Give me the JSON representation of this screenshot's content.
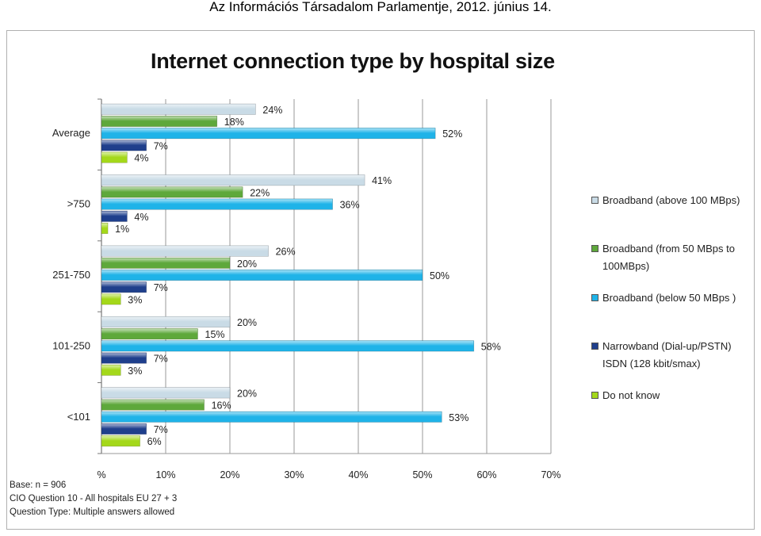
{
  "page": {
    "header": "Az Információs Társadalom Parlamentje, 2012. június 14."
  },
  "notes": [
    "Base: n = 906",
    "CIO Question 10 - All hospitals EU 27 + 3",
    "Question Type: Multiple answers allowed"
  ],
  "colors": {
    "above100": "#c9dbe6",
    "from50to100": "#5ea83b",
    "below50": "#1fb3e8",
    "narrowband": "#1f3f8c",
    "donotknow": "#a4d81a"
  },
  "chart_data": {
    "type": "bar",
    "orientation": "horizontal",
    "title": "Internet connection type by hospital size",
    "categories": [
      "Average",
      ">750",
      "251-750",
      "101-250",
      "<101"
    ],
    "series": [
      {
        "name": "Broadband (above 100 MBps)",
        "color": "#c9dbe6",
        "values": [
          24,
          41,
          26,
          20,
          20
        ],
        "labels": [
          "24%",
          "41%",
          "26%",
          "20%",
          "20%"
        ]
      },
      {
        "name": "Broadband (from 50 MBps to 100MBps)",
        "color": "#5ea83b",
        "values": [
          18,
          22,
          20,
          15,
          16
        ],
        "labels": [
          "18%",
          "22%",
          "20%",
          "15%",
          "16%"
        ]
      },
      {
        "name": "Broadband (below 50 MBps )",
        "color": "#1fb3e8",
        "values": [
          52,
          36,
          50,
          58,
          53
        ],
        "labels": [
          "52%",
          "36%",
          "50%",
          "58%",
          "53%"
        ]
      },
      {
        "name": "Narrowband (Dial-up/PSTN) ISDN (128 kbit/smax)",
        "color": "#1f3f8c",
        "values": [
          7,
          4,
          7,
          7,
          7
        ],
        "labels": [
          "7%",
          "4%",
          "7%",
          "7%",
          "7%"
        ]
      },
      {
        "name": "Do not know",
        "color": "#a4d81a",
        "values": [
          4,
          1,
          3,
          3,
          6
        ],
        "labels": [
          "4%",
          "1%",
          "3%",
          "3%",
          "6%"
        ]
      }
    ],
    "xlim": [
      0,
      70
    ],
    "x_ticks": [
      "%",
      "10%",
      "20%",
      "30%",
      "40%",
      "50%",
      "60%",
      "70%"
    ],
    "grid": true,
    "legend_position": "right"
  }
}
